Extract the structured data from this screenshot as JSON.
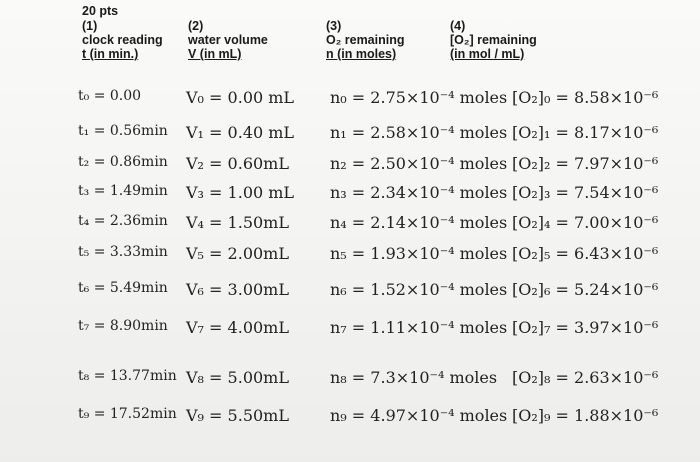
{
  "header": {
    "points": "20 pts",
    "columns": [
      {
        "number": "(1)",
        "title": "clock reading",
        "unit": "t (in min.)"
      },
      {
        "number": "(2)",
        "title": "water volume",
        "unit": "V (in mL)"
      },
      {
        "number": "(3)",
        "title": "O₂ remaining",
        "unit": "n (in moles)"
      },
      {
        "number": "(4)",
        "title": "[O₂] remaining",
        "unit": "(in mol / mL)"
      }
    ]
  },
  "table": {
    "rows": [
      [
        "t₀ = 0.00",
        "V₀ = 0.00 mL",
        "n₀ = 2.75×10⁻⁴ moles",
        "[O₂]₀ = 8.58×10⁻⁶"
      ],
      [
        "t₁ = 0.56min",
        "V₁ = 0.40 mL",
        "n₁ = 2.58×10⁻⁴ moles",
        "[O₂]₁ = 8.17×10⁻⁶"
      ],
      [
        "t₂ = 0.86min",
        "V₂ = 0.60mL",
        "n₂ = 2.50×10⁻⁴ moles",
        "[O₂]₂ = 7.97×10⁻⁶"
      ],
      [
        "t₃ = 1.49min",
        "V₃ = 1.00 mL",
        "n₃ = 2.34×10⁻⁴ moles",
        "[O₂]₃ = 7.54×10⁻⁶"
      ],
      [
        "t₄ = 2.36min",
        "V₄ = 1.50mL",
        "n₄ = 2.14×10⁻⁴ moles",
        "[O₂]₄ = 7.00×10⁻⁶"
      ],
      [
        "t₅ = 3.33min",
        "V₅ = 2.00mL",
        "n₅ = 1.93×10⁻⁴ moles",
        "[O₂]₅ = 6.43×10⁻⁶"
      ],
      [
        "t₆ = 5.49min",
        "V₆ = 3.00mL",
        "n₆ = 1.52×10⁻⁴ moles",
        "[O₂]₆ = 5.24×10⁻⁶"
      ],
      [
        "t₇ = 8.90min",
        "V₇ = 4.00mL",
        "n₇ = 1.11×10⁻⁴ moles",
        "[O₂]₇ = 3.97×10⁻⁶"
      ],
      [
        "t₈ = 13.77min",
        "V₈ = 5.00mL",
        "n₈ = 7.3×10⁻⁴ moles",
        "[O₂]₈ = 2.63×10⁻⁶"
      ],
      [
        "t₉ = 17.52min",
        "V₉ = 5.50mL",
        "n₉ = 4.97×10⁻⁴ moles",
        "[O₂]₉ = 1.88×10⁻⁶"
      ]
    ]
  }
}
